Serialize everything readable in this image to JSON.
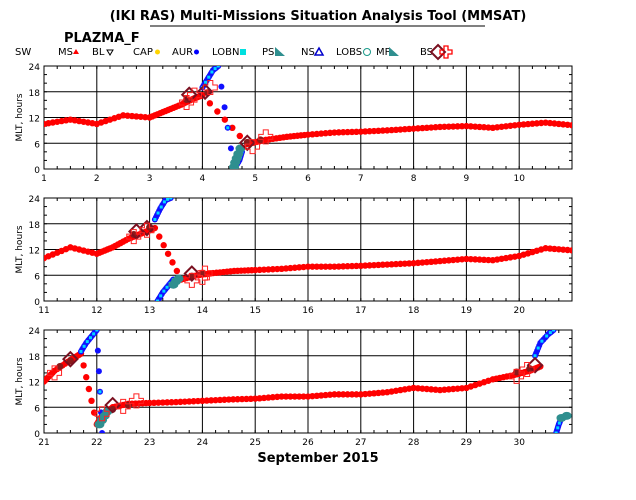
{
  "title": "(IKI RAS) Multi-Missions Situation Analysis Tool (MMSAT)",
  "satellite": "PLAZMA_F",
  "xlabel": "September 2015",
  "legend": [
    {
      "label": "SW",
      "symbol": "none",
      "color": "#000000"
    },
    {
      "label": "MS",
      "symbol": "triangle-small",
      "color": "#ff0000"
    },
    {
      "label": "BL",
      "symbol": "triangle-down",
      "color": "#000000"
    },
    {
      "label": "CAP",
      "symbol": "dot",
      "color": "#ffd400"
    },
    {
      "label": "AUR",
      "symbol": "dot",
      "color": "#0000ff"
    },
    {
      "label": "LOBN",
      "symbol": "square",
      "color": "#00e0e0"
    },
    {
      "label": "PS",
      "symbol": "wedge",
      "color": "#2f8f8f"
    },
    {
      "label": "NS",
      "symbol": "triangle",
      "color": "#0000cc"
    },
    {
      "label": "LOBS",
      "symbol": "circle",
      "color": "#1a9a8a"
    },
    {
      "label": "MP",
      "symbol": "wedge",
      "color": "#2f8f8f"
    },
    {
      "label": "BS",
      "symbol": "diamond",
      "color": "#7a1020"
    },
    {
      "label": "",
      "symbol": "cross",
      "color": "#ff0000"
    }
  ],
  "colors": {
    "sw": "#ff0000",
    "ms": "#8b1a1a",
    "aur": "#1010ff",
    "lobn": "#00d8ff",
    "ps": "#2f8f8f",
    "bs": "#7a1020",
    "cross": "#ff2020"
  },
  "chart_data": [
    {
      "type": "scatter",
      "ylabel": "MLT, hours",
      "xlim": [
        1,
        11
      ],
      "ylim": [
        0,
        24
      ],
      "xticks": [
        "1",
        "2",
        "3",
        "4",
        "5",
        "6",
        "7",
        "8",
        "9",
        "10"
      ],
      "yticks": [
        "0",
        "6",
        "12",
        "18",
        "24"
      ],
      "grid": true,
      "series": [
        {
          "region": "SW",
          "x": [
            1,
            1.5,
            2,
            2.5,
            3,
            3.3,
            3.6,
            3.85,
            4.0,
            4.85,
            5.2,
            5.6,
            6,
            6.5,
            7,
            7.5,
            8,
            8.5,
            9,
            9.5,
            10,
            10.5,
            11
          ],
          "y": [
            10.5,
            11.5,
            10.5,
            12.5,
            12,
            13.5,
            15,
            16.5,
            17.2,
            5.8,
            6.8,
            7.5,
            8,
            8.5,
            8.7,
            9,
            9.4,
            9.8,
            10,
            9.6,
            10.3,
            10.8,
            10.2
          ]
        },
        {
          "region": "MS",
          "x": [
            3.7,
            4.1,
            4.85,
            5.1
          ],
          "y": [
            16.2,
            17.8,
            6.2,
            6.8
          ]
        },
        {
          "region": "AUR",
          "x": [
            4.0,
            4.1,
            4.2,
            4.3,
            4.6,
            4.7,
            4.75
          ],
          "y": [
            19,
            21,
            23,
            24,
            0,
            2,
            4
          ]
        },
        {
          "region": "PS",
          "x": [
            4.6,
            4.62,
            4.65,
            4.68,
            4.72
          ],
          "y": [
            0.5,
            1.5,
            2.5,
            3.5,
            4.8
          ]
        },
        {
          "region": "BS",
          "x": [
            3.75,
            4.05,
            4.85
          ],
          "y": [
            17.3,
            18.0,
            6.1
          ]
        },
        {
          "region": "Cross",
          "x": [
            3.7,
            3.85,
            4.15,
            4.95,
            5.2
          ],
          "y": [
            15.5,
            17.2,
            19,
            5.2,
            7.5
          ]
        }
      ]
    },
    {
      "type": "scatter",
      "ylabel": "MLT, hours",
      "xlim": [
        11,
        21
      ],
      "ylim": [
        0,
        24
      ],
      "xticks": [
        "11",
        "12",
        "13",
        "14",
        "15",
        "16",
        "17",
        "18",
        "19",
        "20"
      ],
      "yticks": [
        "0",
        "6",
        "12",
        "18",
        "24"
      ],
      "grid": true,
      "series": [
        {
          "region": "SW",
          "x": [
            11,
            11.5,
            12,
            12.3,
            12.6,
            12.9,
            13.1,
            13.6,
            13.9,
            14.2,
            14.6,
            15,
            15.5,
            16,
            16.5,
            17,
            17.5,
            18,
            18.5,
            19,
            19.5,
            20,
            20.5,
            21
          ],
          "y": [
            10,
            12.5,
            11,
            12.5,
            14.5,
            16,
            17,
            5,
            6,
            6.5,
            7,
            7.2,
            7.5,
            8,
            8,
            8.2,
            8.5,
            8.8,
            9.3,
            9.8,
            9.5,
            10.5,
            12.3,
            11.8
          ]
        },
        {
          "region": "MS",
          "x": [
            12.7,
            13.0,
            13.8,
            14.0
          ],
          "y": [
            15.5,
            17.2,
            5.8,
            6.5
          ]
        },
        {
          "region": "AUR",
          "x": [
            13.1,
            13.2,
            13.3,
            13.4
          ],
          "y": [
            19,
            21.5,
            23.5,
            24
          ]
        },
        {
          "region": "AUR",
          "x": [
            13.15,
            13.25,
            13.35,
            13.45
          ],
          "y": [
            0,
            2,
            3.5,
            5
          ]
        },
        {
          "region": "PS",
          "x": [
            13.45,
            13.5,
            13.55
          ],
          "y": [
            3.8,
            4.6,
            5.2
          ]
        },
        {
          "region": "BS",
          "x": [
            12.75,
            12.95,
            13.8
          ],
          "y": [
            16.2,
            17.0,
            6.4
          ]
        },
        {
          "region": "Cross",
          "x": [
            12.7,
            12.95,
            13.8,
            14.0,
            14.05
          ],
          "y": [
            15.0,
            16.5,
            4.8,
            5.5,
            6.5
          ]
        }
      ]
    },
    {
      "type": "scatter",
      "ylabel": "MLT, hours",
      "xlim": [
        21,
        31
      ],
      "ylim": [
        0,
        24
      ],
      "xticks": [
        "21",
        "22",
        "23",
        "24",
        "25",
        "26",
        "27",
        "28",
        "29",
        "30"
      ],
      "yticks": [
        "0",
        "6",
        "12",
        "18",
        "24"
      ],
      "grid": true,
      "series": [
        {
          "region": "SW",
          "x": [
            21,
            21.2,
            21.5,
            21.7,
            22,
            22.1,
            22.3,
            22.6,
            23,
            23.5,
            24,
            24.5,
            25,
            25.5,
            26,
            26.5,
            27,
            27.5,
            28,
            28.5,
            29,
            29.5,
            29.9,
            30.2,
            30.4
          ],
          "y": [
            12,
            14.5,
            17,
            18.5,
            2,
            4,
            6,
            6.8,
            7,
            7.2,
            7.5,
            7.8,
            8,
            8.5,
            8.5,
            9,
            9,
            9.5,
            10.5,
            10,
            10.5,
            12.5,
            13.5,
            14.5,
            15.5
          ]
        },
        {
          "region": "MS",
          "x": [
            21.3,
            21.5,
            22.3,
            22.6,
            29.95,
            30.2
          ],
          "y": [
            15.5,
            16.8,
            5.5,
            6.5,
            14.2,
            15
          ]
        },
        {
          "region": "AUR",
          "x": [
            21.7,
            21.8,
            21.9,
            22.0,
            22.1
          ],
          "y": [
            19,
            21,
            22.5,
            24,
            0
          ]
        },
        {
          "region": "AUR",
          "x": [
            30.3,
            30.4,
            30.55,
            30.65
          ],
          "y": [
            18,
            21,
            23,
            24
          ]
        },
        {
          "region": "AUR",
          "x": [
            30.7,
            30.75,
            30.8
          ],
          "y": [
            0,
            2,
            3.5
          ]
        },
        {
          "region": "PS",
          "x": [
            22.05,
            22.1,
            22.15,
            22.2,
            30.8,
            30.9
          ],
          "y": [
            2,
            3,
            4,
            5,
            3.5,
            4
          ]
        },
        {
          "region": "BS",
          "x": [
            21.5,
            22.3,
            30.3
          ],
          "y": [
            17.2,
            6.5,
            15.8
          ]
        },
        {
          "region": "Cross",
          "x": [
            21.2,
            22.1,
            22.5,
            22.75,
            29.95,
            30.15
          ],
          "y": [
            14,
            4.5,
            6.2,
            7.5,
            13.2,
            14.8
          ]
        }
      ]
    }
  ]
}
